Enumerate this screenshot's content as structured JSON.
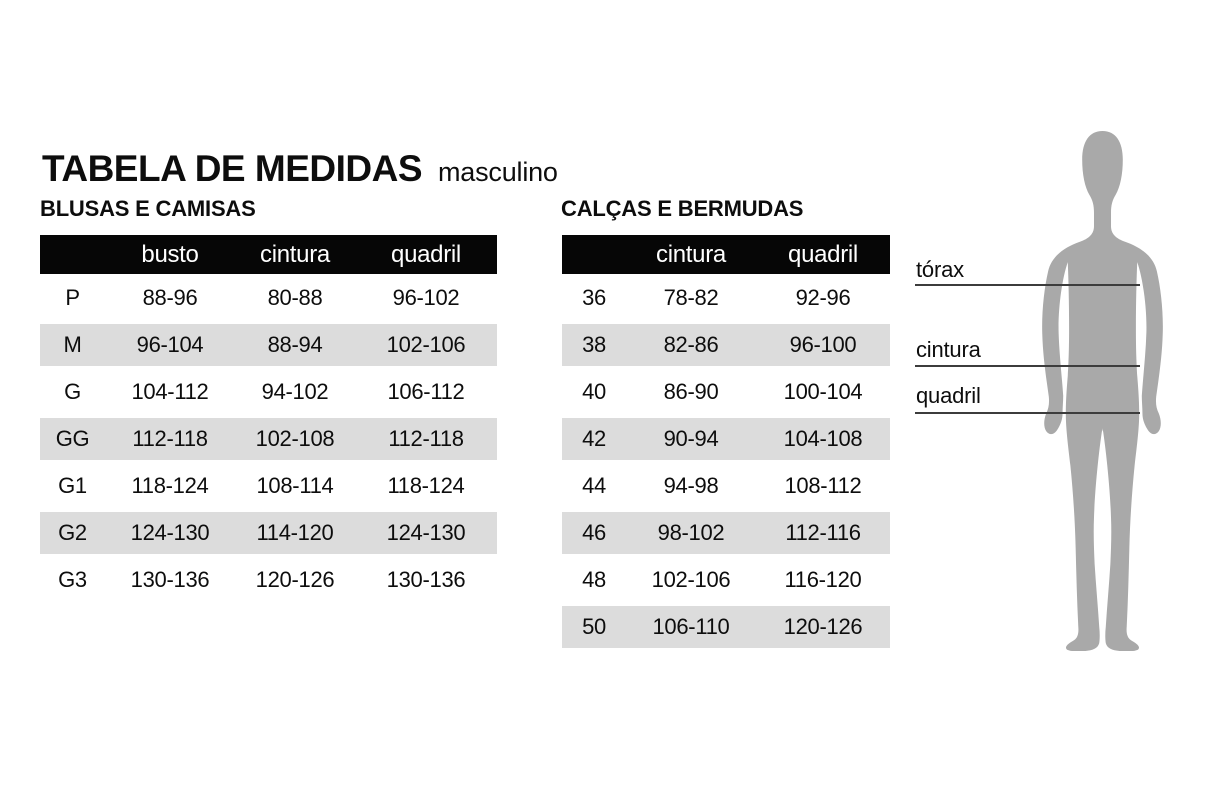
{
  "header": {
    "title": "TABELA DE MEDIDAS",
    "subtitle": "masculino"
  },
  "tables": [
    {
      "section_title": "BLUSAS E CAMISAS",
      "columns": [
        "",
        "busto",
        "cintura",
        "quadril"
      ],
      "rows": [
        [
          "P",
          "88-96",
          "80-88",
          "96-102"
        ],
        [
          "M",
          "96-104",
          "88-94",
          "102-106"
        ],
        [
          "G",
          "104-112",
          "94-102",
          "106-112"
        ],
        [
          "GG",
          "112-118",
          "102-108",
          "112-118"
        ],
        [
          "G1",
          "118-124",
          "108-114",
          "118-124"
        ],
        [
          "G2",
          "124-130",
          "114-120",
          "124-130"
        ],
        [
          "G3",
          "130-136",
          "120-126",
          "130-136"
        ]
      ]
    },
    {
      "section_title": "CALÇAS E BERMUDAS",
      "columns": [
        "",
        "cintura",
        "quadril"
      ],
      "rows": [
        [
          "36",
          "78-82",
          "92-96"
        ],
        [
          "38",
          "82-86",
          "96-100"
        ],
        [
          "40",
          "86-90",
          "100-104"
        ],
        [
          "42",
          "90-94",
          "104-108"
        ],
        [
          "44",
          "94-98",
          "108-112"
        ],
        [
          "46",
          "98-102",
          "112-116"
        ],
        [
          "48",
          "102-106",
          "116-120"
        ],
        [
          "50",
          "106-110",
          "120-126"
        ]
      ]
    }
  ],
  "figure": {
    "measurements": [
      {
        "label": "tórax"
      },
      {
        "label": "cintura"
      },
      {
        "label": "quadril"
      }
    ]
  },
  "colors": {
    "header_bar": "#060606",
    "row_alt": "#dcdcdc",
    "silhouette": "#a9a9a9",
    "measure_line": "#3c3c3c"
  }
}
